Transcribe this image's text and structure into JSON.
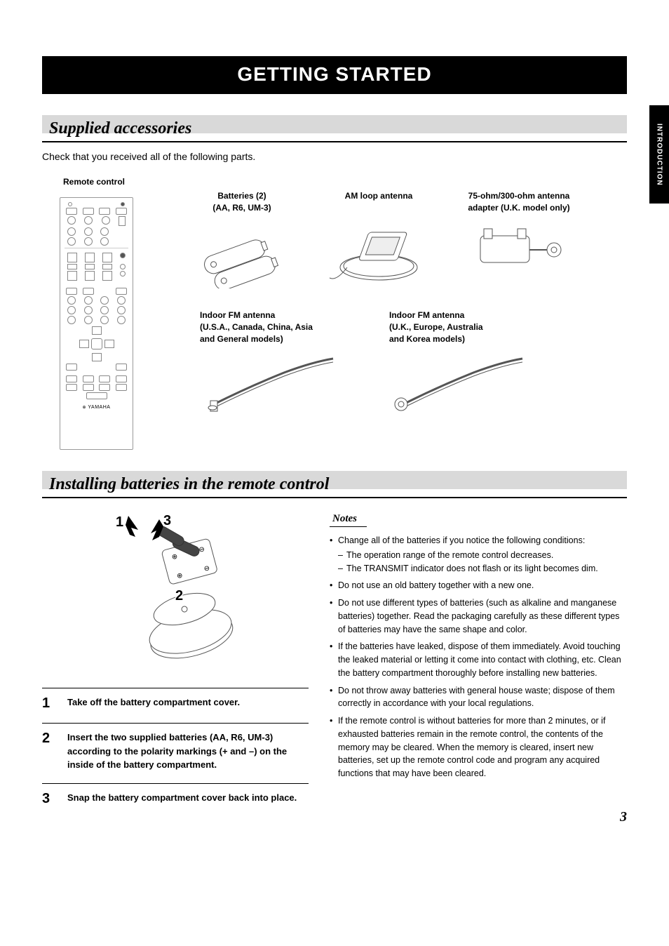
{
  "side_tab": "INTRODUCTION",
  "main_title": "GETTING STARTED",
  "section1": {
    "heading": "Supplied accessories",
    "intro": "Check that you received all of the following parts.",
    "labels": {
      "remote": "Remote control",
      "batteries_l1": "Batteries (2)",
      "batteries_l2": "(AA, R6, UM-3)",
      "am_loop": "AM loop antenna",
      "adapter_l1": "75-ohm/300-ohm antenna",
      "adapter_l2": "adapter (U.K. model only)",
      "fm1_l1": "Indoor FM antenna",
      "fm1_l2": "(U.S.A., Canada, China, Asia",
      "fm1_l3": "and General models)",
      "fm2_l1": "Indoor FM antenna",
      "fm2_l2": "(U.K., Europe, Australia",
      "fm2_l3": "and Korea models)"
    },
    "remote_brand": "YAMAHA"
  },
  "section2": {
    "heading": "Installing batteries in the remote control",
    "diagram_labels": {
      "n1": "1",
      "n2": "2",
      "n3": "3"
    },
    "steps": [
      {
        "num": "1",
        "text": "Take off the battery compartment cover."
      },
      {
        "num": "2",
        "text": "Insert the two supplied batteries (AA, R6, UM-3) according to the polarity markings (+ and –) on the inside of the battery compartment."
      },
      {
        "num": "3",
        "text": "Snap the battery compartment cover back into place."
      }
    ],
    "notes_title": "Notes",
    "notes": [
      {
        "text": "Change all of the batteries if you notice the following conditions:",
        "sub": [
          "The operation range of the remote control decreases.",
          "The TRANSMIT indicator does not flash or its light becomes dim."
        ]
      },
      {
        "text": "Do not use an old battery together with a new one."
      },
      {
        "text": "Do not use different types of batteries (such as alkaline and manganese batteries) together. Read the packaging carefully as these different types of batteries may have the same shape and color."
      },
      {
        "text": "If the batteries have leaked, dispose of them immediately. Avoid touching the leaked material or letting it come into contact with clothing, etc. Clean the battery compartment thoroughly before installing new batteries."
      },
      {
        "text": "Do not throw away batteries with general house waste; dispose of them correctly in accordance with your local regulations."
      },
      {
        "text": "If the remote control is without batteries for more than 2 minutes, or if exhausted batteries remain in the remote control, the contents of the memory may be cleared. When the memory is cleared, insert new batteries, set up the remote control code and program any acquired functions that may have been cleared."
      }
    ]
  },
  "page_number": "3",
  "colors": {
    "black": "#000000",
    "grey_band": "#d9d9d9",
    "line": "#999999"
  }
}
